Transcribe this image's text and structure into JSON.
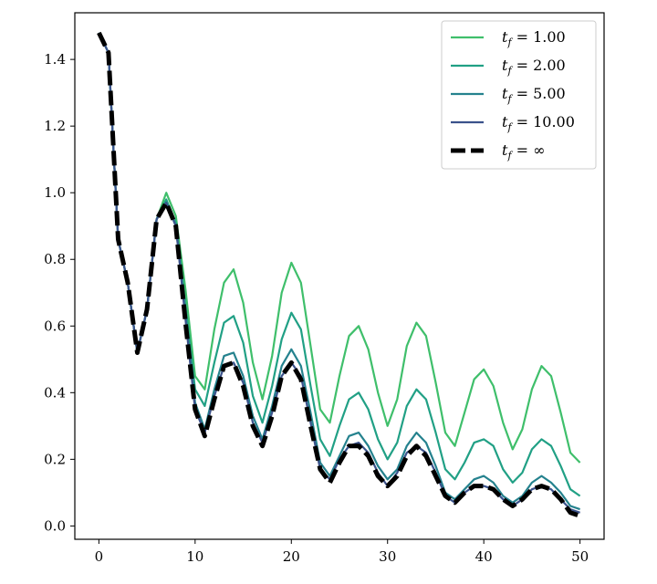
{
  "chart_data": {
    "type": "line",
    "title": "",
    "xlabel": "",
    "ylabel": "",
    "xlim": [
      -2.5,
      52.5
    ],
    "ylim": [
      -0.04,
      1.54
    ],
    "xticks": [
      0,
      10,
      20,
      30,
      40,
      50
    ],
    "xtick_labels": [
      "0",
      "10",
      "20",
      "30",
      "40",
      "50"
    ],
    "yticks": [
      0.0,
      0.2,
      0.4,
      0.6,
      0.8,
      1.0,
      1.2,
      1.4
    ],
    "ytick_labels": [
      "0.0",
      "0.2",
      "0.4",
      "0.6",
      "0.8",
      "1.0",
      "1.2",
      "1.4"
    ],
    "grid": false,
    "legend_position": "top-right",
    "x": [
      0,
      1,
      2,
      3,
      4,
      5,
      6,
      7,
      8,
      9,
      10,
      11,
      12,
      13,
      14,
      15,
      16,
      17,
      18,
      19,
      20,
      21,
      22,
      23,
      24,
      25,
      26,
      27,
      28,
      29,
      30,
      31,
      32,
      33,
      34,
      35,
      36,
      37,
      38,
      39,
      40,
      41,
      42,
      43,
      44,
      45,
      46,
      47,
      48,
      49,
      50
    ],
    "series": [
      {
        "name_prefix": "t",
        "name_sub": "f",
        "name_value": " = 1.00",
        "color": "#3fbf6b",
        "style": "solid",
        "values": [
          1.48,
          1.42,
          0.86,
          0.73,
          0.52,
          0.65,
          0.92,
          1.0,
          0.93,
          0.71,
          0.45,
          0.41,
          0.59,
          0.73,
          0.77,
          0.67,
          0.49,
          0.38,
          0.51,
          0.7,
          0.79,
          0.73,
          0.54,
          0.35,
          0.31,
          0.45,
          0.57,
          0.6,
          0.53,
          0.4,
          0.3,
          0.38,
          0.54,
          0.61,
          0.57,
          0.43,
          0.28,
          0.24,
          0.34,
          0.44,
          0.47,
          0.42,
          0.31,
          0.23,
          0.29,
          0.41,
          0.48,
          0.45,
          0.34,
          0.22,
          0.19
        ]
      },
      {
        "name_prefix": "t",
        "name_sub": "f",
        "name_value": " = 2.00",
        "color": "#21a085",
        "style": "solid",
        "values": [
          1.48,
          1.42,
          0.86,
          0.73,
          0.52,
          0.65,
          0.92,
          0.98,
          0.91,
          0.66,
          0.41,
          0.36,
          0.49,
          0.61,
          0.63,
          0.55,
          0.39,
          0.31,
          0.42,
          0.56,
          0.64,
          0.59,
          0.42,
          0.26,
          0.21,
          0.3,
          0.38,
          0.4,
          0.35,
          0.26,
          0.2,
          0.25,
          0.36,
          0.41,
          0.38,
          0.28,
          0.17,
          0.14,
          0.19,
          0.25,
          0.26,
          0.24,
          0.17,
          0.13,
          0.16,
          0.23,
          0.26,
          0.24,
          0.18,
          0.11,
          0.09
        ]
      },
      {
        "name_prefix": "t",
        "name_sub": "f",
        "name_value": " = 5.00",
        "color": "#25828e",
        "style": "solid",
        "values": [
          1.48,
          1.42,
          0.86,
          0.73,
          0.52,
          0.65,
          0.92,
          0.97,
          0.9,
          0.63,
          0.37,
          0.29,
          0.41,
          0.51,
          0.52,
          0.45,
          0.33,
          0.26,
          0.36,
          0.48,
          0.53,
          0.48,
          0.34,
          0.19,
          0.15,
          0.21,
          0.27,
          0.28,
          0.24,
          0.18,
          0.14,
          0.17,
          0.24,
          0.28,
          0.25,
          0.18,
          0.1,
          0.08,
          0.11,
          0.14,
          0.15,
          0.13,
          0.09,
          0.07,
          0.09,
          0.13,
          0.15,
          0.13,
          0.1,
          0.06,
          0.05
        ]
      },
      {
        "name_prefix": "t",
        "name_sub": "f",
        "name_value": " = 10.00",
        "color": "#3b528b",
        "style": "solid",
        "values": [
          1.48,
          1.42,
          0.86,
          0.73,
          0.52,
          0.65,
          0.92,
          0.97,
          0.9,
          0.62,
          0.35,
          0.28,
          0.39,
          0.48,
          0.49,
          0.43,
          0.31,
          0.25,
          0.34,
          0.45,
          0.49,
          0.45,
          0.31,
          0.17,
          0.14,
          0.2,
          0.24,
          0.25,
          0.22,
          0.16,
          0.12,
          0.16,
          0.22,
          0.24,
          0.22,
          0.16,
          0.09,
          0.07,
          0.1,
          0.12,
          0.12,
          0.11,
          0.08,
          0.06,
          0.08,
          0.11,
          0.12,
          0.11,
          0.08,
          0.05,
          0.04
        ]
      },
      {
        "name_prefix": "t",
        "name_sub": "f",
        "name_value": " = ∞",
        "color": "#000000",
        "style": "dashed",
        "values": [
          1.48,
          1.42,
          0.86,
          0.73,
          0.52,
          0.65,
          0.92,
          0.97,
          0.9,
          0.61,
          0.35,
          0.27,
          0.38,
          0.48,
          0.49,
          0.42,
          0.3,
          0.24,
          0.33,
          0.45,
          0.49,
          0.44,
          0.3,
          0.17,
          0.13,
          0.19,
          0.24,
          0.24,
          0.21,
          0.15,
          0.12,
          0.15,
          0.21,
          0.24,
          0.21,
          0.15,
          0.09,
          0.07,
          0.1,
          0.12,
          0.12,
          0.11,
          0.08,
          0.06,
          0.08,
          0.11,
          0.12,
          0.11,
          0.08,
          0.04,
          0.03
        ]
      }
    ]
  }
}
